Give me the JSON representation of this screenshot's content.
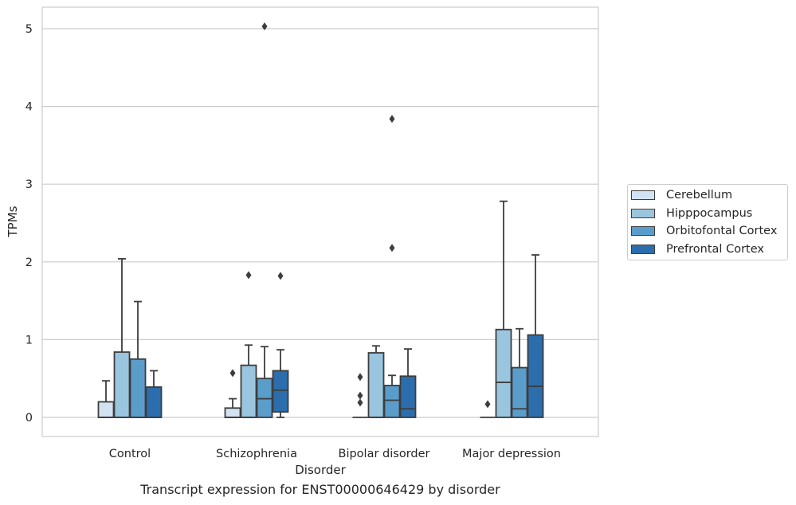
{
  "chart_data": {
    "type": "box",
    "xlabel": "Disorder",
    "ylabel": "TPMs",
    "caption": "Transcript expression for ENST00000646429 by disorder",
    "ylim": [
      -0.25,
      5.28
    ],
    "yticks": [
      0,
      1,
      2,
      3,
      4,
      5
    ],
    "grid": "y",
    "legend_position": "right",
    "categories": [
      "Control",
      "Schizophrenia",
      "Bipolar disorder",
      "Major depression"
    ],
    "series": [
      {
        "name": "Cerebellum",
        "color": "#d1e2f2",
        "boxes": [
          {
            "whislo": 0,
            "q1": 0,
            "med": 0,
            "q3": 0.2,
            "whishi": 0.47,
            "fliers": []
          },
          {
            "whislo": 0,
            "q1": 0,
            "med": 0,
            "q3": 0.12,
            "whishi": 0.24,
            "fliers": [
              0.57
            ]
          },
          {
            "whislo": 0,
            "q1": 0,
            "med": 0,
            "q3": 0,
            "whishi": 0,
            "fliers": [
              0.52,
              0.28,
              0.19
            ]
          },
          {
            "whislo": 0,
            "q1": 0,
            "med": 0,
            "q3": 0,
            "whishi": 0,
            "fliers": [
              0.17
            ]
          }
        ]
      },
      {
        "name": "Hipppocampus",
        "color": "#9ac5de",
        "boxes": [
          {
            "whislo": 0,
            "q1": 0,
            "med": 0,
            "q3": 0.84,
            "whishi": 2.04,
            "fliers": []
          },
          {
            "whislo": 0,
            "q1": 0,
            "med": 0,
            "q3": 0.67,
            "whishi": 0.93,
            "fliers": [
              1.83
            ]
          },
          {
            "whislo": 0,
            "q1": 0,
            "med": 0,
            "q3": 0.83,
            "whishi": 0.92,
            "fliers": []
          },
          {
            "whislo": 0,
            "q1": 0,
            "med": 0.45,
            "q3": 1.13,
            "whishi": 2.78,
            "fliers": []
          }
        ]
      },
      {
        "name": "Orbitofontal Cortex",
        "color": "#5a9dcb",
        "boxes": [
          {
            "whislo": 0,
            "q1": 0,
            "med": 0,
            "q3": 0.75,
            "whishi": 1.49,
            "fliers": []
          },
          {
            "whislo": 0,
            "q1": 0,
            "med": 0.24,
            "q3": 0.5,
            "whishi": 0.91,
            "fliers": [
              5.03
            ]
          },
          {
            "whislo": 0,
            "q1": 0,
            "med": 0.22,
            "q3": 0.41,
            "whishi": 0.54,
            "fliers": [
              3.84,
              2.18
            ]
          },
          {
            "whislo": 0,
            "q1": 0,
            "med": 0.11,
            "q3": 0.64,
            "whishi": 1.14,
            "fliers": []
          }
        ]
      },
      {
        "name": "Prefrontal Cortex",
        "color": "#2c6ead",
        "boxes": [
          {
            "whislo": 0,
            "q1": 0,
            "med": 0,
            "q3": 0.39,
            "whishi": 0.6,
            "fliers": []
          },
          {
            "whislo": 0,
            "q1": 0.07,
            "med": 0.35,
            "q3": 0.6,
            "whishi": 0.87,
            "fliers": [
              1.82
            ]
          },
          {
            "whislo": 0,
            "q1": 0,
            "med": 0.11,
            "q3": 0.53,
            "whishi": 0.88,
            "fliers": []
          },
          {
            "whislo": 0,
            "q1": 0,
            "med": 0.4,
            "q3": 1.06,
            "whishi": 2.09,
            "fliers": []
          }
        ]
      }
    ]
  }
}
